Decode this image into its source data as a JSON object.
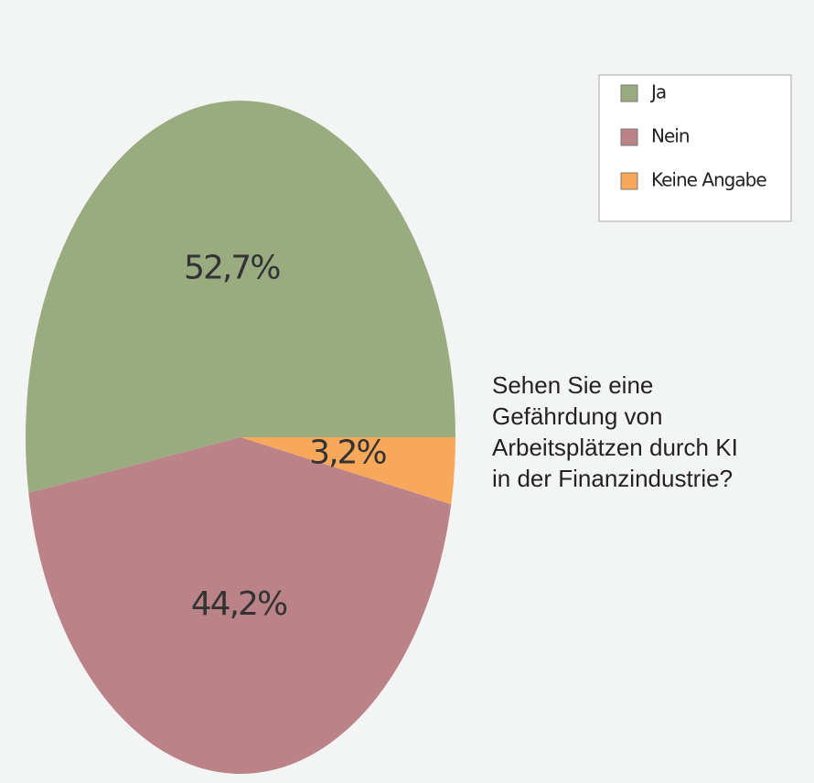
{
  "chart_data": {
    "type": "pie",
    "title": "Sehen Sie eine\nGefährdung von\nArbeitsplätzen durch KI\nin der Finanzindustrie?",
    "categories": [
      "Ja",
      "Nein",
      "Keine Angabe"
    ],
    "values": [
      52.7,
      44.2,
      3.2
    ],
    "value_labels": [
      "52,7%",
      "44,2%",
      "3,2%"
    ],
    "colors": [
      "#9aab80",
      "#bb8387",
      "#f8a85b"
    ],
    "legend": "top-right"
  }
}
